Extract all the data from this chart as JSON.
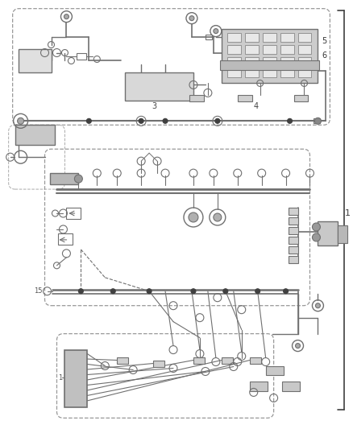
{
  "bg_color": "#ffffff",
  "line_color": "#707070",
  "dark_line": "#404040",
  "fig_width": 4.38,
  "fig_height": 5.33,
  "dpi": 100
}
